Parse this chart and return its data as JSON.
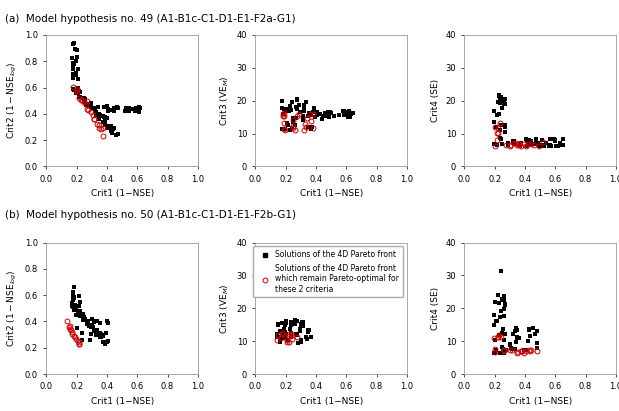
{
  "title_a": "(a)  Model hypothesis no. 49 (A1-B1c-C1-D1-E1-F2a-G1)",
  "title_b": "(b)  Model hypothesis no. 50 (A1-B1c-C1-D1-E1-F2b-G1)",
  "xlabel": "Crit1 (1−NSE)",
  "ylabel_crit2": "Crit2 (1−NSE$_{log}$)",
  "ylabel_crit3": "Crit3 (VE$_M$)",
  "ylabel_crit4": "Crit4 (SE)",
  "legend_black": "Solutions of the 4D Pareto front",
  "legend_red": "Solutions of the 4D Pareto front\nwhich remain Pareto-optimal for\nthese 2 criteria",
  "xlim": [
    0,
    1
  ],
  "ylim_crit2": [
    0,
    1
  ],
  "ylim_crit3": [
    0,
    40
  ],
  "ylim_crit4": [
    0,
    40
  ],
  "xticks": [
    0,
    0.2,
    0.4,
    0.6,
    0.8,
    1
  ],
  "yticks_crit2": [
    0,
    0.2,
    0.4,
    0.6,
    0.8,
    1
  ],
  "yticks_crit3": [
    0,
    10,
    20,
    30,
    40
  ],
  "yticks_crit4": [
    0,
    10,
    20,
    30,
    40
  ],
  "black_color": "#000000",
  "red_color": "#cc0000",
  "black_ms": 2.2,
  "red_ms": 3.5,
  "background": "#ffffff",
  "title_fontsize": 7.5,
  "label_fontsize": 6.5,
  "tick_fontsize": 6
}
